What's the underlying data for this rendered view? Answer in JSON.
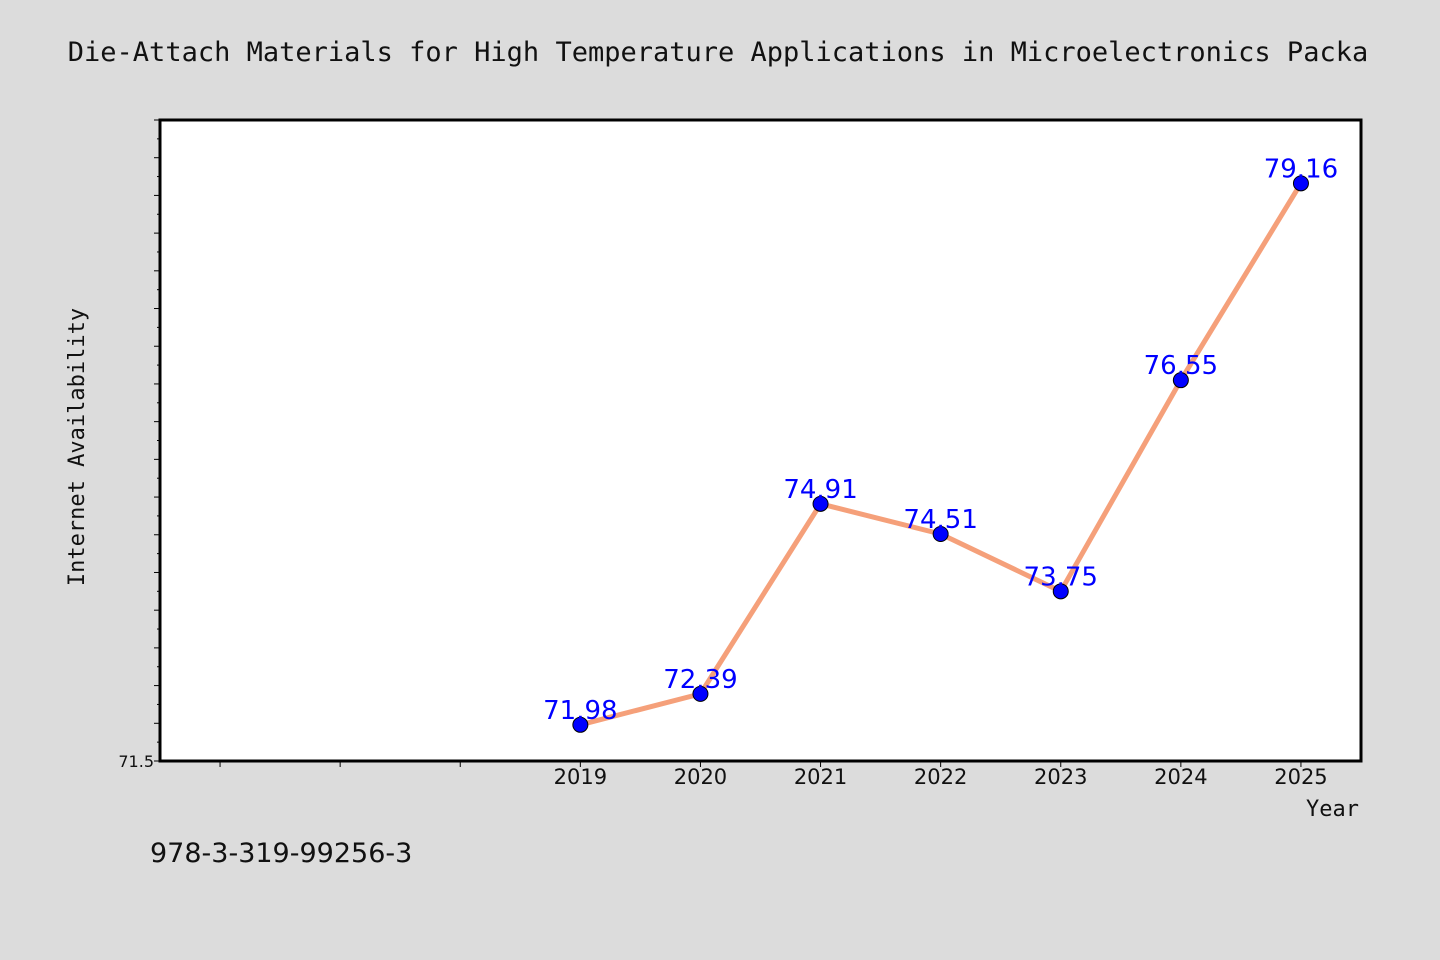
{
  "chart_data": {
    "type": "line",
    "title": "Die-Attach Materials for High Temperature Applications in Microelectronics Packa",
    "xlabel": "Year",
    "ylabel": "Internet Availability",
    "categories": [
      "2019",
      "2020",
      "2021",
      "2022",
      "2023",
      "2024",
      "2025"
    ],
    "values": [
      71.98,
      72.39,
      74.91,
      74.51,
      73.75,
      76.55,
      79.16
    ],
    "data_labels": [
      "71.98",
      "72.39",
      "74.91",
      "74.51",
      "73.75",
      "76.55",
      "79.16"
    ],
    "x_domain": [
      2015.5,
      2025.5
    ],
    "ylim": [
      71.5,
      80.0
    ],
    "y_tick_labels": [
      "71.5"
    ],
    "grid": false,
    "line_color": "#f5a07a",
    "marker_color": "#0000ff",
    "label_color": "#0000ff",
    "annotation": "978-3-319-99256-3"
  }
}
